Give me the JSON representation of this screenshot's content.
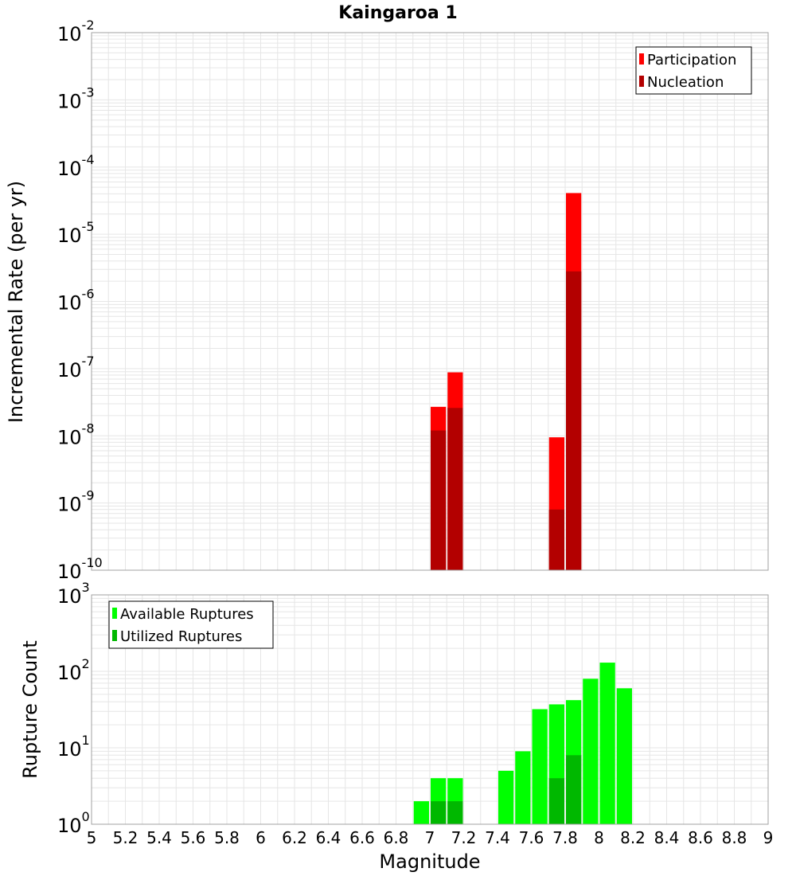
{
  "title": "Kaingaroa 1",
  "xlabel": "Magnitude",
  "colors": {
    "participation": "#ff0000",
    "nucleation": "#b30000",
    "available": "#00ff00",
    "utilized": "#00b800",
    "grid": "#e6e6e6",
    "frame": "#a0a0a0"
  },
  "chart_data": [
    {
      "type": "bar",
      "name": "rates",
      "ylabel": "Incremental Rate (per yr)",
      "y_scale": "log",
      "ylim_exp": [
        -10,
        -2
      ],
      "xlim": [
        5,
        9
      ],
      "bar_width": 0.1,
      "legend_position": "top-right",
      "series": [
        {
          "name": "Participation",
          "color": "participation",
          "points": [
            [
              7.05,
              2.7e-08
            ],
            [
              7.15,
              8.8e-08
            ],
            [
              7.75,
              9.5e-09
            ],
            [
              7.85,
              4.1e-05
            ]
          ]
        },
        {
          "name": "Nucleation",
          "color": "nucleation",
          "points": [
            [
              7.05,
              1.2e-08
            ],
            [
              7.15,
              2.6e-08
            ],
            [
              7.75,
              8e-10
            ],
            [
              7.85,
              2.8e-06
            ]
          ]
        }
      ]
    },
    {
      "type": "bar",
      "name": "counts",
      "ylabel": "Rupture Count",
      "y_scale": "log",
      "ylim_exp": [
        0,
        3
      ],
      "xlim": [
        5,
        9
      ],
      "bar_width": 0.1,
      "legend_position": "top-left",
      "series": [
        {
          "name": "Available Ruptures",
          "color": "available",
          "points": [
            [
              6.65,
              1
            ],
            [
              6.95,
              2
            ],
            [
              7.05,
              4
            ],
            [
              7.15,
              4
            ],
            [
              7.35,
              1
            ],
            [
              7.45,
              5
            ],
            [
              7.55,
              9
            ],
            [
              7.65,
              32
            ],
            [
              7.75,
              37
            ],
            [
              7.85,
              42
            ],
            [
              7.95,
              80
            ],
            [
              8.05,
              130
            ],
            [
              8.15,
              60
            ],
            [
              8.25,
              1
            ]
          ]
        },
        {
          "name": "Utilized Ruptures",
          "color": "utilized",
          "points": [
            [
              7.05,
              2
            ],
            [
              7.15,
              2
            ],
            [
              7.75,
              4
            ],
            [
              7.85,
              8
            ]
          ]
        }
      ]
    }
  ],
  "xticks": [
    "5",
    "5.2",
    "5.4",
    "5.6",
    "5.8",
    "6",
    "6.2",
    "6.4",
    "6.6",
    "6.8",
    "7",
    "7.2",
    "7.4",
    "7.6",
    "7.8",
    "8",
    "8.2",
    "8.4",
    "8.6",
    "8.8",
    "9"
  ]
}
